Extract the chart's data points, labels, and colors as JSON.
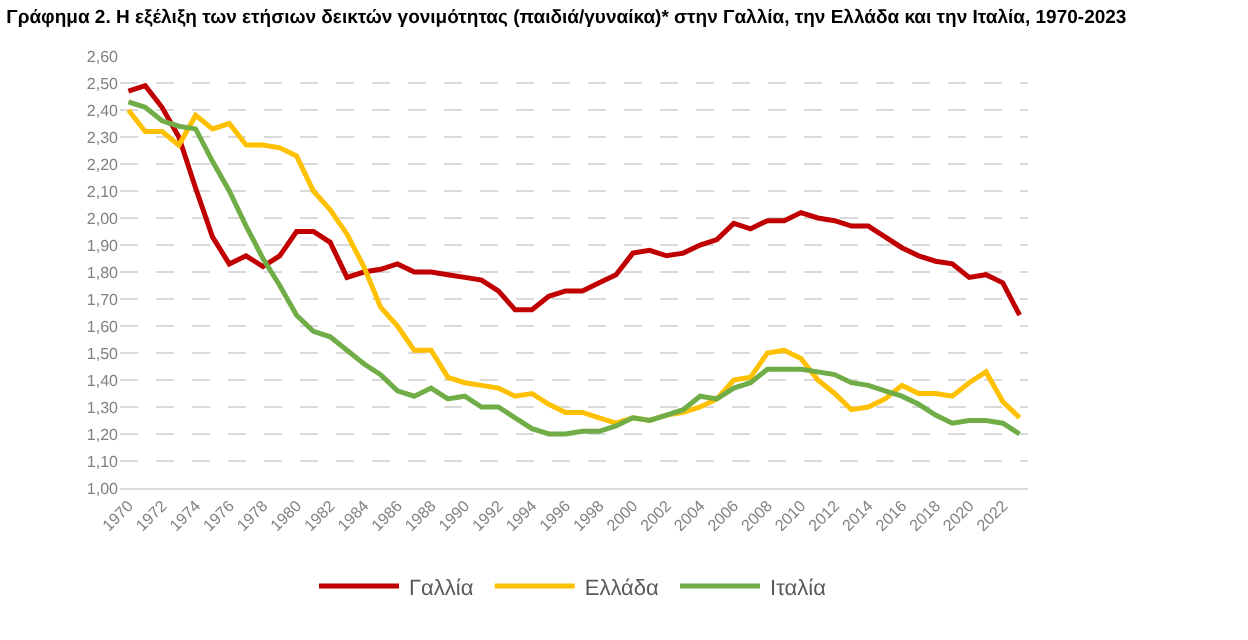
{
  "chart_data": {
    "type": "line",
    "title": "Γράφημα 2. Η εξέλιξη των ετήσιων δεικτών γονιμότητας (παιδιά/γυναίκα)* στην Γαλλία, την Ελλάδα και την Ιταλία, 1970-2023",
    "x": [
      1970,
      1971,
      1972,
      1973,
      1974,
      1975,
      1976,
      1977,
      1978,
      1979,
      1980,
      1981,
      1982,
      1983,
      1984,
      1985,
      1986,
      1987,
      1988,
      1989,
      1990,
      1991,
      1992,
      1993,
      1994,
      1995,
      1996,
      1997,
      1998,
      1999,
      2000,
      2001,
      2002,
      2003,
      2004,
      2005,
      2006,
      2007,
      2008,
      2009,
      2010,
      2011,
      2012,
      2013,
      2014,
      2015,
      2016,
      2017,
      2018,
      2019,
      2020,
      2021,
      2022,
      2023
    ],
    "series": [
      {
        "name": "Γαλλία",
        "color": "#c00000",
        "values": [
          2.47,
          2.49,
          2.41,
          2.3,
          2.11,
          1.93,
          1.83,
          1.86,
          1.82,
          1.86,
          1.95,
          1.95,
          1.91,
          1.78,
          1.8,
          1.81,
          1.83,
          1.8,
          1.8,
          1.79,
          1.78,
          1.77,
          1.73,
          1.66,
          1.66,
          1.71,
          1.73,
          1.73,
          1.76,
          1.79,
          1.87,
          1.88,
          1.86,
          1.87,
          1.9,
          1.92,
          1.98,
          1.96,
          1.99,
          1.99,
          2.02,
          2.0,
          1.99,
          1.97,
          1.97,
          1.93,
          1.89,
          1.86,
          1.84,
          1.83,
          1.78,
          1.79,
          1.76,
          1.64
        ]
      },
      {
        "name": "Ελλάδα",
        "color": "#ffc000",
        "values": [
          2.4,
          2.32,
          2.32,
          2.27,
          2.38,
          2.33,
          2.35,
          2.27,
          2.27,
          2.26,
          2.23,
          2.1,
          2.03,
          1.94,
          1.82,
          1.67,
          1.6,
          1.51,
          1.51,
          1.41,
          1.39,
          1.38,
          1.37,
          1.34,
          1.35,
          1.31,
          1.28,
          1.28,
          1.26,
          1.24,
          1.26,
          1.25,
          1.27,
          1.28,
          1.3,
          1.33,
          1.4,
          1.41,
          1.5,
          1.51,
          1.48,
          1.4,
          1.35,
          1.29,
          1.3,
          1.33,
          1.38,
          1.35,
          1.35,
          1.34,
          1.39,
          1.43,
          1.32,
          1.26
        ]
      },
      {
        "name": "Ιταλία",
        "color": "#70ad47",
        "values": [
          2.43,
          2.41,
          2.36,
          2.34,
          2.33,
          2.21,
          2.1,
          1.97,
          1.85,
          1.75,
          1.64,
          1.58,
          1.56,
          1.51,
          1.46,
          1.42,
          1.36,
          1.34,
          1.37,
          1.33,
          1.34,
          1.3,
          1.3,
          1.26,
          1.22,
          1.2,
          1.2,
          1.21,
          1.21,
          1.23,
          1.26,
          1.25,
          1.27,
          1.29,
          1.34,
          1.33,
          1.37,
          1.39,
          1.44,
          1.44,
          1.44,
          1.43,
          1.42,
          1.39,
          1.38,
          1.36,
          1.34,
          1.31,
          1.27,
          1.24,
          1.25,
          1.25,
          1.24,
          1.2
        ]
      }
    ],
    "xlim": [
      1969.5,
      2023.5
    ],
    "xticks": [
      1970,
      1972,
      1974,
      1976,
      1978,
      1980,
      1982,
      1984,
      1986,
      1988,
      1990,
      1992,
      1994,
      1996,
      1998,
      2000,
      2002,
      2004,
      2006,
      2008,
      2010,
      2012,
      2014,
      2016,
      2018,
      2020,
      2022
    ],
    "ylim": [
      1.0,
      2.6
    ],
    "yticks": [
      {
        "value": 1.0,
        "label": "1,00"
      },
      {
        "value": 1.1,
        "label": "1,10"
      },
      {
        "value": 1.2,
        "label": "1,20"
      },
      {
        "value": 1.3,
        "label": "1,30"
      },
      {
        "value": 1.4,
        "label": "1,40"
      },
      {
        "value": 1.5,
        "label": "1,50"
      },
      {
        "value": 1.6,
        "label": "1,60"
      },
      {
        "value": 1.7,
        "label": "1,70"
      },
      {
        "value": 1.8,
        "label": "1,80"
      },
      {
        "value": 1.9,
        "label": "1,90"
      },
      {
        "value": 2.0,
        "label": "2,00"
      },
      {
        "value": 2.1,
        "label": "2,10"
      },
      {
        "value": 2.2,
        "label": "2,20"
      },
      {
        "value": 2.3,
        "label": "2,30"
      },
      {
        "value": 2.4,
        "label": "2,40"
      },
      {
        "value": 2.5,
        "label": "2,50"
      },
      {
        "value": 2.6,
        "label": "2,60"
      }
    ],
    "grid": "y",
    "legend": "bottom",
    "marker": "none",
    "line_style": "solid"
  }
}
